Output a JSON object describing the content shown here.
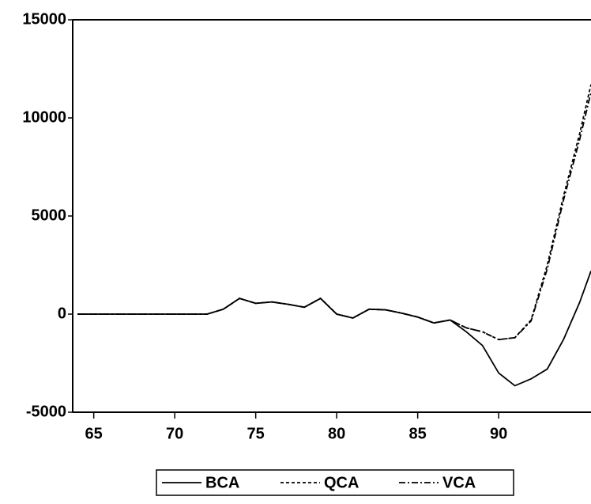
{
  "chart_data": {
    "type": "line",
    "x": [
      64,
      65,
      66,
      67,
      68,
      69,
      70,
      71,
      72,
      73,
      74,
      75,
      76,
      77,
      78,
      79,
      80,
      81,
      82,
      83,
      84,
      85,
      86,
      87,
      88,
      89,
      90,
      91,
      92,
      93,
      94,
      95,
      95.7
    ],
    "series": [
      {
        "name": "BCA",
        "color": "#000000",
        "dash": "solid",
        "values": [
          0,
          0,
          0,
          0,
          0,
          0,
          0,
          0,
          0,
          250,
          800,
          550,
          620,
          500,
          350,
          800,
          0,
          -200,
          250,
          220,
          50,
          -150,
          -450,
          -300,
          -900,
          -1600,
          -3000,
          -3650,
          -3300,
          -2800,
          -1300,
          600,
          2200
        ]
      },
      {
        "name": "QCA",
        "color": "#000000",
        "dash": "dashed",
        "values": [
          0,
          0,
          0,
          0,
          0,
          0,
          0,
          0,
          0,
          250,
          800,
          550,
          620,
          500,
          350,
          800,
          0,
          -200,
          250,
          220,
          50,
          -150,
          -450,
          -300,
          -700,
          -900,
          -1300,
          -1200,
          -300,
          2500,
          6000,
          9200,
          11700
        ]
      },
      {
        "name": "VCA",
        "color": "#000000",
        "dash": "dashdot",
        "values": [
          0,
          0,
          0,
          0,
          0,
          0,
          0,
          0,
          0,
          250,
          800,
          550,
          620,
          500,
          350,
          800,
          0,
          -200,
          250,
          220,
          50,
          -150,
          -450,
          -300,
          -700,
          -900,
          -1300,
          -1200,
          -350,
          2300,
          5800,
          8900,
          11300
        ]
      }
    ],
    "xlim": [
      63.7,
      95.7
    ],
    "xticks": [
      65,
      70,
      75,
      80,
      85,
      90
    ],
    "ylim": [
      -5000,
      15000
    ],
    "yticks": [
      -5000,
      0,
      5000,
      10000,
      15000
    ]
  }
}
